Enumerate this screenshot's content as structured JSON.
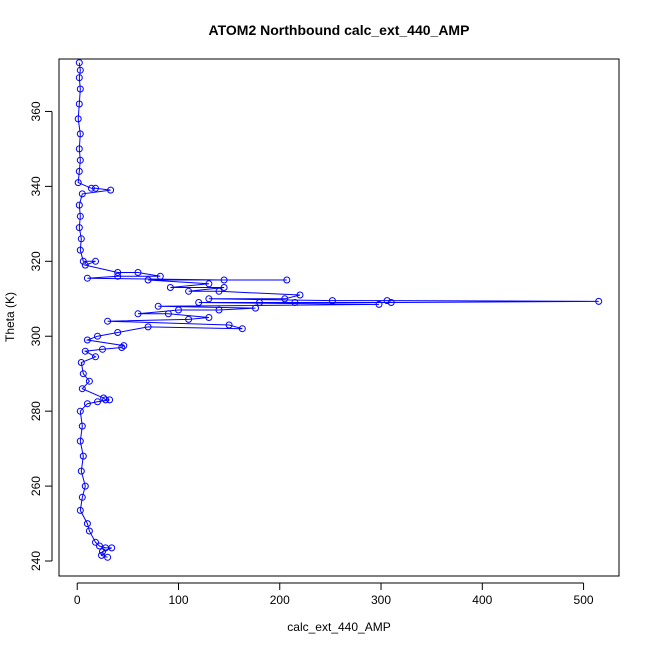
{
  "chart_data": {
    "type": "scatter",
    "title": "ATOM2 Northbound calc_ext_440_AMP",
    "xlabel": "calc_ext_440_AMP",
    "ylabel": "Theta (K)",
    "xlim": [
      -18,
      535
    ],
    "ylim": [
      236,
      374
    ],
    "xticks": [
      0,
      100,
      200,
      300,
      400,
      500
    ],
    "yticks": [
      240,
      260,
      280,
      300,
      320,
      340,
      360
    ],
    "xtick_labels": [
      "0",
      "100",
      "200",
      "300",
      "400",
      "500"
    ],
    "ytick_labels": [
      "240",
      "260",
      "280",
      "300",
      "320",
      "340",
      "360"
    ],
    "connected": true,
    "marker": "open-circle",
    "color": "#0000ff",
    "points": [
      [
        2,
        373
      ],
      [
        3,
        371
      ],
      [
        2,
        369
      ],
      [
        3,
        366
      ],
      [
        2,
        362
      ],
      [
        1,
        358
      ],
      [
        3,
        354
      ],
      [
        2,
        350
      ],
      [
        3,
        347
      ],
      [
        2,
        344
      ],
      [
        1,
        341
      ],
      [
        14,
        339.5
      ],
      [
        18,
        339.5
      ],
      [
        33,
        339
      ],
      [
        5,
        338
      ],
      [
        2,
        335
      ],
      [
        3,
        332
      ],
      [
        2,
        329
      ],
      [
        4,
        326
      ],
      [
        3,
        323
      ],
      [
        6,
        320
      ],
      [
        18,
        320
      ],
      [
        8,
        319
      ],
      [
        40,
        317
      ],
      [
        60,
        317
      ],
      [
        82,
        316
      ],
      [
        40,
        316
      ],
      [
        10,
        315.5
      ],
      [
        145,
        315
      ],
      [
        207,
        315
      ],
      [
        70,
        315
      ],
      [
        130,
        314
      ],
      [
        92,
        313
      ],
      [
        145,
        313
      ],
      [
        110,
        312
      ],
      [
        140,
        312
      ],
      [
        220,
        311
      ],
      [
        205,
        310
      ],
      [
        130,
        310
      ],
      [
        252,
        309.5
      ],
      [
        306,
        309.5
      ],
      [
        515,
        309.3
      ],
      [
        310,
        309
      ],
      [
        215,
        309
      ],
      [
        180,
        309
      ],
      [
        120,
        309
      ],
      [
        298,
        308.5
      ],
      [
        80,
        308
      ],
      [
        176,
        307.5
      ],
      [
        140,
        307
      ],
      [
        100,
        307
      ],
      [
        60,
        306
      ],
      [
        90,
        306
      ],
      [
        130,
        305
      ],
      [
        110,
        304.5
      ],
      [
        30,
        304
      ],
      [
        150,
        303
      ],
      [
        163,
        302
      ],
      [
        70,
        302.5
      ],
      [
        40,
        301
      ],
      [
        20,
        300
      ],
      [
        10,
        299
      ],
      [
        46,
        297.5
      ],
      [
        44,
        297
      ],
      [
        25,
        296.5
      ],
      [
        8,
        296
      ],
      [
        18,
        294.5
      ],
      [
        4,
        293
      ],
      [
        6,
        290
      ],
      [
        12,
        288
      ],
      [
        5,
        286
      ],
      [
        26,
        283.5
      ],
      [
        28,
        283
      ],
      [
        32,
        283
      ],
      [
        20,
        282.5
      ],
      [
        10,
        282
      ],
      [
        3,
        280
      ],
      [
        5,
        276
      ],
      [
        3,
        272
      ],
      [
        6,
        268
      ],
      [
        4,
        264
      ],
      [
        8,
        260
      ],
      [
        5,
        257
      ],
      [
        3,
        253.5
      ],
      [
        10,
        250
      ],
      [
        12,
        248
      ],
      [
        18,
        245
      ],
      [
        22,
        244
      ],
      [
        28,
        243.5
      ],
      [
        34,
        243.5
      ],
      [
        25,
        242.5
      ],
      [
        24,
        241.5
      ],
      [
        30,
        241
      ]
    ]
  }
}
